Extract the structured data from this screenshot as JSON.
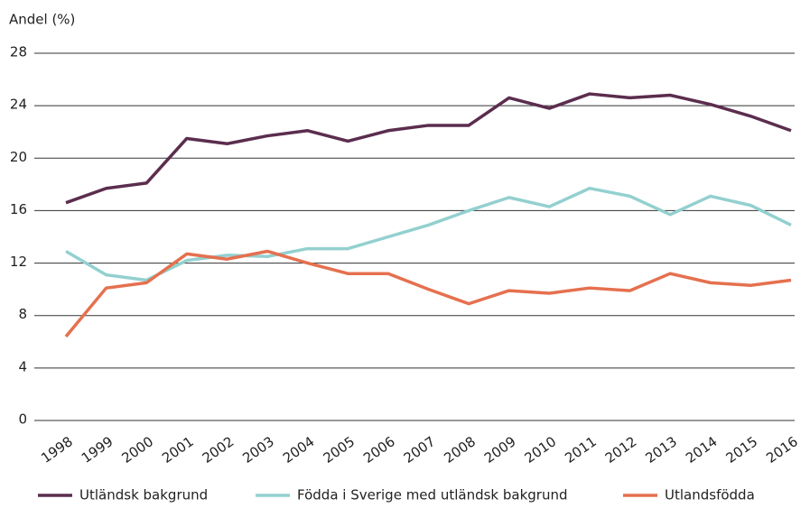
{
  "chart_data": {
    "type": "line",
    "y_label": "Andel (%)",
    "categories": [
      "1998",
      "1999",
      "2000",
      "2001",
      "2002",
      "2003",
      "2004",
      "2005",
      "2006",
      "2007",
      "2008",
      "2009",
      "2010",
      "2011",
      "2012",
      "2013",
      "2014",
      "2015",
      "2016"
    ],
    "series": [
      {
        "name": "Utländsk bakgrund",
        "color": "#5b2d4e",
        "values": [
          16.6,
          17.7,
          18.1,
          21.5,
          21.1,
          21.7,
          22.1,
          21.3,
          22.1,
          22.5,
          22.5,
          24.6,
          23.8,
          24.9,
          24.6,
          24.8,
          24.1,
          23.2,
          22.1
        ]
      },
      {
        "name": "Födda i Sverige med utländsk bakgrund",
        "color": "#93d0cf",
        "values": [
          12.9,
          11.1,
          10.7,
          12.2,
          12.6,
          12.5,
          13.1,
          13.1,
          14.0,
          14.9,
          16.0,
          17.0,
          16.3,
          17.7,
          17.1,
          15.7,
          17.1,
          16.4,
          14.9
        ]
      },
      {
        "name": "Utlandsfödda",
        "color": "#e5704f",
        "values": [
          6.4,
          10.1,
          10.5,
          12.7,
          12.3,
          12.9,
          12.0,
          11.2,
          11.2,
          10.0,
          8.9,
          9.9,
          9.7,
          10.1,
          9.9,
          11.2,
          10.5,
          10.3,
          10.7
        ]
      }
    ],
    "ylim": [
      0,
      28
    ],
    "yticks": [
      0,
      4,
      8,
      12,
      16,
      20,
      24,
      28
    ],
    "grid": true,
    "legend": "bottom"
  }
}
